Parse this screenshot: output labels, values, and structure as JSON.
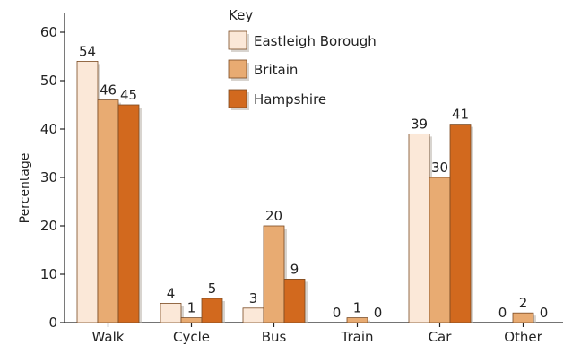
{
  "chart_data": {
    "type": "bar",
    "ylabel": "Percentage",
    "xlabel": "",
    "ylim": [
      0,
      60
    ],
    "yticks": [
      0,
      10,
      20,
      30,
      40,
      50,
      60
    ],
    "grid": false,
    "legend": {
      "title": "Key",
      "placement": "top-center"
    },
    "categories": [
      "Walk",
      "Cycle",
      "Bus",
      "Train",
      "Car",
      "Other"
    ],
    "series": [
      {
        "name": "Eastleigh Borough",
        "color": "#fbe8d8",
        "values": [
          54,
          4,
          3,
          0,
          39,
          0
        ]
      },
      {
        "name": "Britain",
        "color": "#e8ab72",
        "values": [
          46,
          1,
          20,
          1,
          30,
          2
        ]
      },
      {
        "name": "Hampshire",
        "color": "#d2691e",
        "values": [
          45,
          5,
          9,
          0,
          41,
          0
        ]
      }
    ]
  }
}
